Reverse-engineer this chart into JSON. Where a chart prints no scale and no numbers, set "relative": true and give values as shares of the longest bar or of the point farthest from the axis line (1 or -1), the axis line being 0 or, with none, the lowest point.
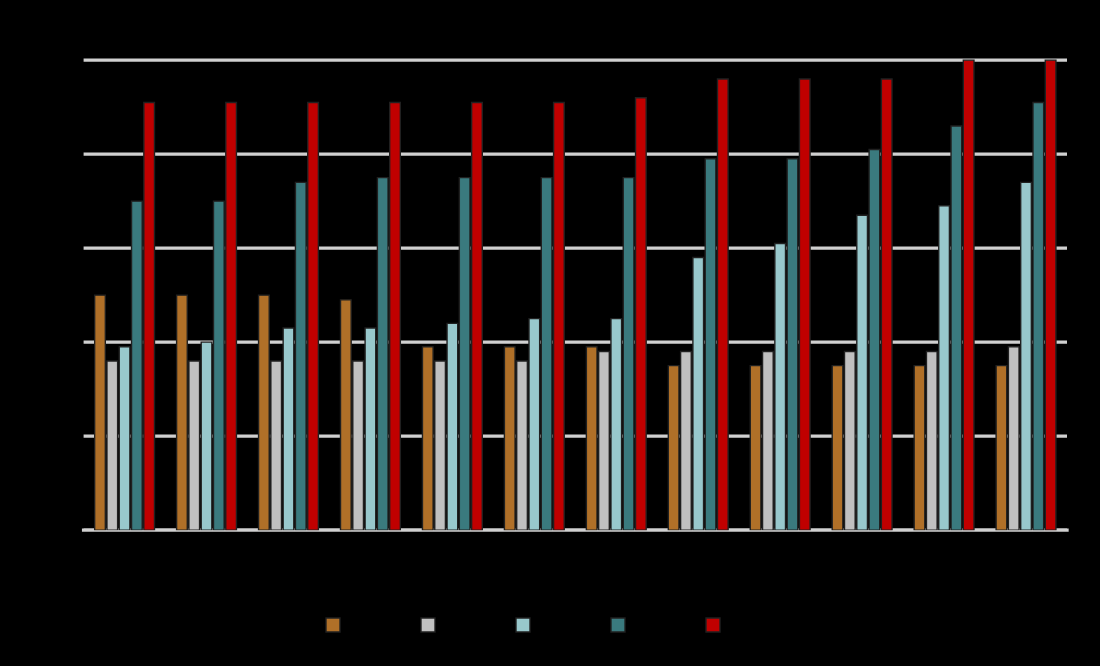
{
  "chart_data": {
    "type": "bar",
    "relative": true,
    "grid": "y",
    "categories": [
      null,
      null,
      null,
      null,
      null,
      null,
      null,
      null,
      null,
      null,
      null,
      null
    ],
    "series": [
      {
        "color": "#b07028",
        "values": [
          0.5,
          0.5,
          0.5,
          0.49,
          0.39,
          0.39,
          0.39,
          0.35,
          0.35,
          0.35,
          0.35,
          0.35
        ]
      },
      {
        "color": "#c0c0c0",
        "values": [
          0.36,
          0.36,
          0.36,
          0.36,
          0.36,
          0.36,
          0.38,
          0.38,
          0.38,
          0.38,
          0.38,
          0.39
        ]
      },
      {
        "color": "#98c8cc",
        "values": [
          0.39,
          0.4,
          0.43,
          0.43,
          0.44,
          0.45,
          0.45,
          0.58,
          0.61,
          0.67,
          0.69,
          0.74
        ]
      },
      {
        "color": "#3a7a7e",
        "values": [
          0.7,
          0.7,
          0.74,
          0.75,
          0.75,
          0.75,
          0.75,
          0.79,
          0.79,
          0.81,
          0.86,
          0.91
        ]
      },
      {
        "color": "#c00000",
        "values": [
          0.91,
          0.91,
          0.91,
          0.91,
          0.91,
          0.91,
          0.92,
          0.96,
          0.96,
          0.96,
          1.0,
          1.0
        ]
      }
    ]
  }
}
